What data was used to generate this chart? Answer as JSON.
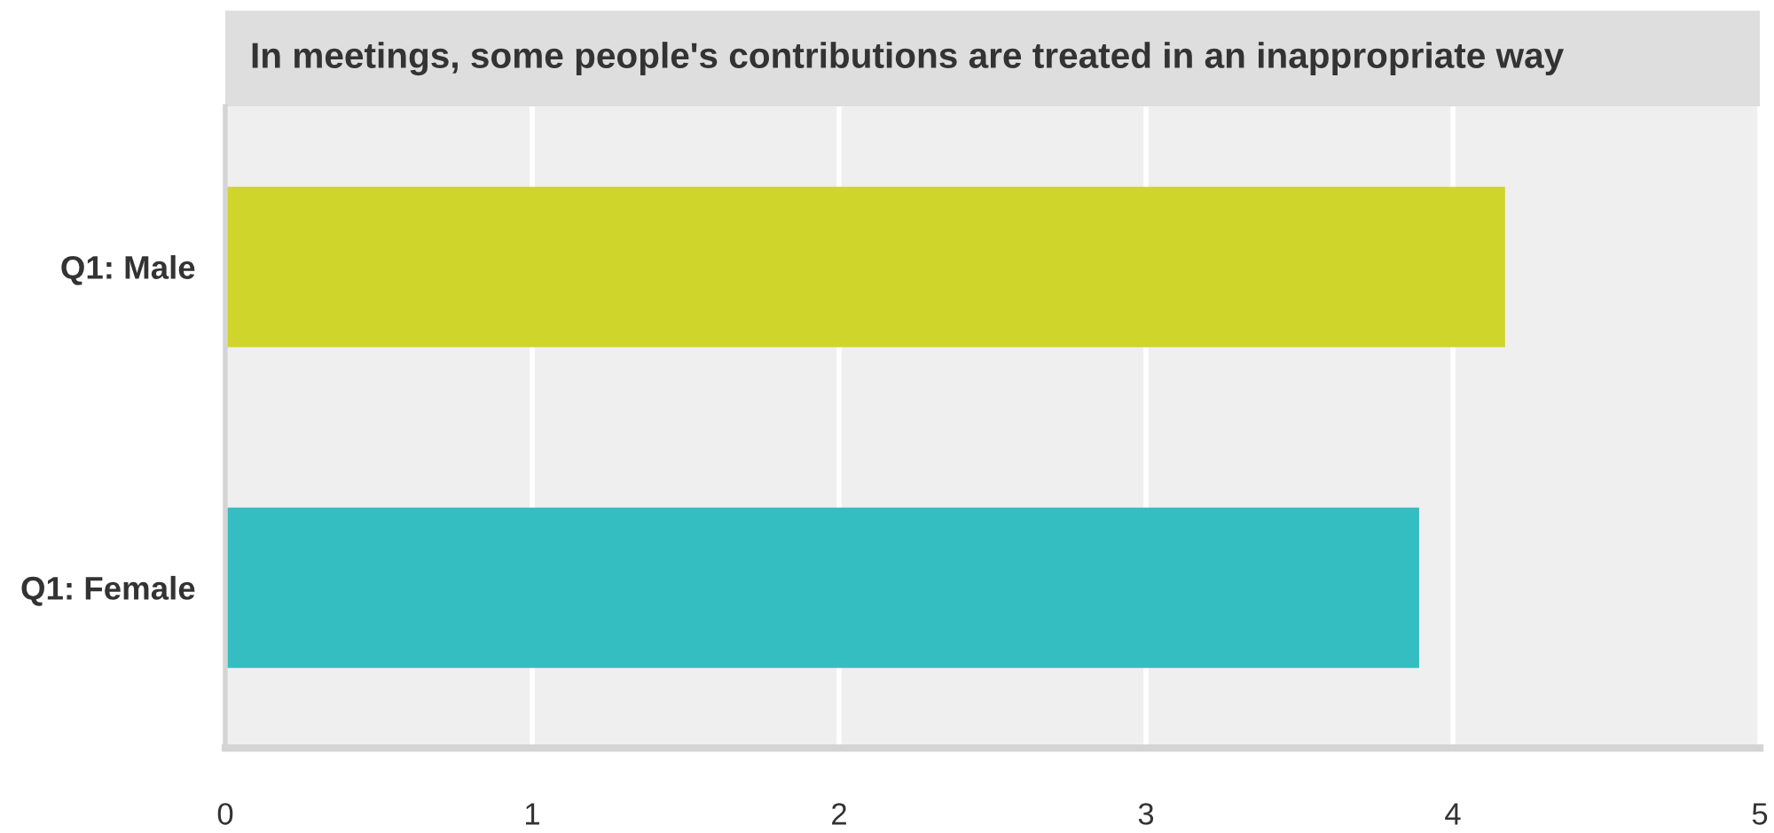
{
  "chart_data": {
    "type": "bar",
    "orientation": "horizontal",
    "title": "In meetings, some people's contributions are treated in an inappropriate way",
    "categories": [
      "Q1: Male",
      "Q1: Female"
    ],
    "values": [
      4.17,
      3.89
    ],
    "colors": [
      "#cfd52a",
      "#35bec1"
    ],
    "xlim": [
      0,
      5
    ],
    "xticks": [
      0,
      1,
      2,
      3,
      4,
      5
    ],
    "grid": "x"
  }
}
